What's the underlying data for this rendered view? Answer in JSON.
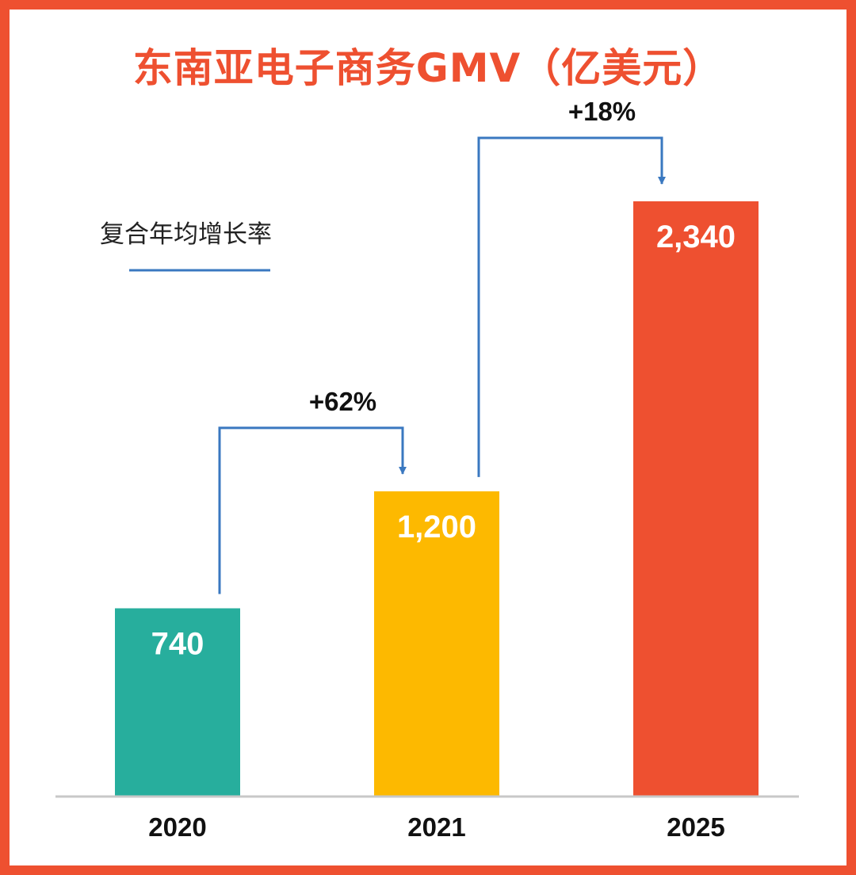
{
  "chart_data": {
    "type": "bar",
    "title": "东南亚电子商务GMV（亿美元）",
    "categories": [
      "2020",
      "2021",
      "2025"
    ],
    "values": [
      740,
      1200,
      2340
    ],
    "value_labels": [
      "740",
      "1,200",
      "2,340"
    ],
    "bar_colors": [
      "#27AE9D",
      "#FDB900",
      "#EE5030"
    ],
    "xlabel": "",
    "ylabel": "",
    "ylim": [
      0,
      2340
    ],
    "grid": false,
    "legend": {
      "label": "复合年均增长率",
      "color": "#3A78C0",
      "placement": "top-left"
    },
    "annotations": [
      {
        "from": "2020",
        "to": "2021",
        "label": "+62%"
      },
      {
        "from": "2021",
        "to": "2025",
        "label": "+18%"
      }
    ]
  },
  "colors": {
    "frame": "#EE5030",
    "title": "#EE5030",
    "arrow": "#3A78C0",
    "axis": "#C8C8C8"
  }
}
